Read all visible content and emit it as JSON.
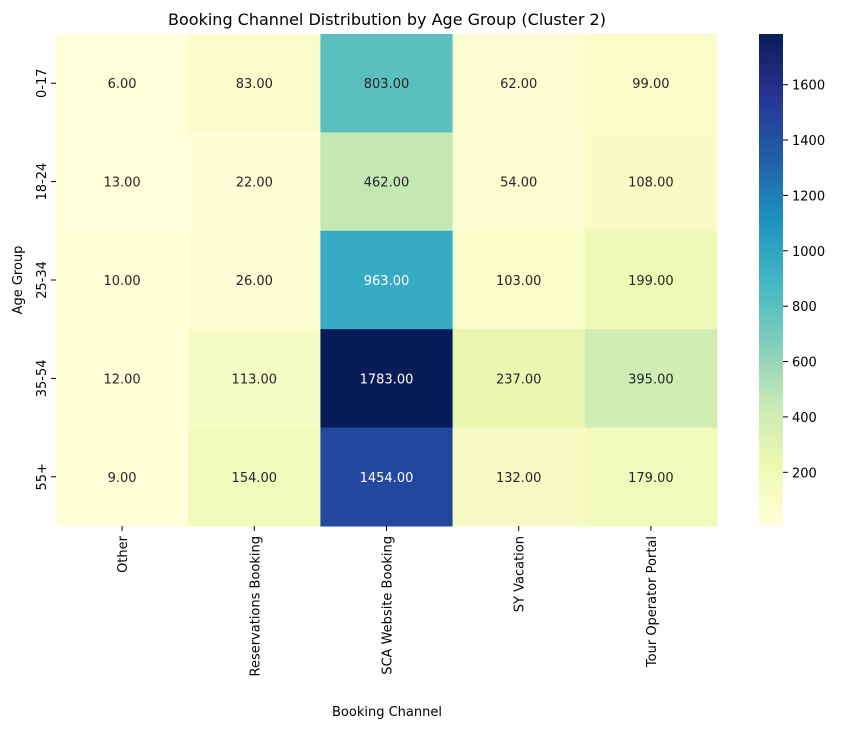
{
  "chart_data": {
    "type": "heatmap",
    "title": "Booking Channel Distribution by Age Group (Cluster 2)",
    "xlabel": "Booking Channel",
    "ylabel": "Age Group",
    "x_categories": [
      "Other",
      "Reservations Booking",
      "SCA Website Booking",
      "SY Vacation",
      "Tour Operator Portal"
    ],
    "y_categories": [
      "0-17",
      "18-24",
      "25-34",
      "35-54",
      "55+"
    ],
    "values": [
      [
        6,
        83,
        803,
        62,
        99
      ],
      [
        13,
        22,
        462,
        54,
        108
      ],
      [
        10,
        26,
        963,
        103,
        199
      ],
      [
        12,
        113,
        1783,
        237,
        395
      ],
      [
        9,
        154,
        1454,
        132,
        179
      ]
    ],
    "value_format": "2 decimals",
    "colormap": "YlGnBu",
    "colorbar": {
      "min": 6,
      "max": 1783,
      "ticks": [
        200,
        400,
        600,
        800,
        1000,
        1200,
        1400,
        1600
      ]
    }
  }
}
